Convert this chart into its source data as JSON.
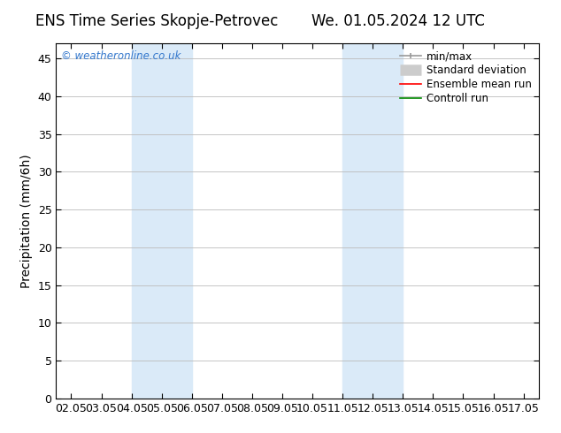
{
  "title_left": "ENS Time Series Skopje-Petrovec",
  "title_right": "We. 01.05.2024 12 UTC",
  "ylabel": "Precipitation (mm/6h)",
  "ylim": [
    0,
    47
  ],
  "yticks": [
    0,
    5,
    10,
    15,
    20,
    25,
    30,
    35,
    40,
    45
  ],
  "xtick_labels": [
    "02.05",
    "03.05",
    "04.05",
    "05.05",
    "06.05",
    "07.05",
    "08.05",
    "09.05",
    "10.05",
    "11.05",
    "12.05",
    "13.05",
    "14.05",
    "15.05",
    "16.05",
    "17.05"
  ],
  "xtick_positions": [
    0,
    1,
    2,
    3,
    4,
    5,
    6,
    7,
    8,
    9,
    10,
    11,
    12,
    13,
    14,
    15
  ],
  "shaded_bands": [
    {
      "x_start": 2,
      "x_end": 4,
      "color": "#daeaf8"
    },
    {
      "x_start": 9,
      "x_end": 11,
      "color": "#daeaf8"
    }
  ],
  "background_color": "#ffffff",
  "plot_bg_color": "#ffffff",
  "grid_color": "#bbbbbb",
  "legend_items": [
    {
      "label": "min/max",
      "color": "#999999",
      "lw": 1.2,
      "style": "line_with_caps"
    },
    {
      "label": "Standard deviation",
      "color": "#cccccc",
      "lw": 5,
      "style": "thick"
    },
    {
      "label": "Ensemble mean run",
      "color": "#ff0000",
      "lw": 1.2,
      "style": "line"
    },
    {
      "label": "Controll run",
      "color": "#008800",
      "lw": 1.2,
      "style": "line"
    }
  ],
  "watermark": "© weatheronline.co.uk",
  "watermark_color": "#3377cc",
  "title_fontsize": 12,
  "axis_fontsize": 10,
  "tick_fontsize": 9,
  "legend_fontsize": 8.5
}
